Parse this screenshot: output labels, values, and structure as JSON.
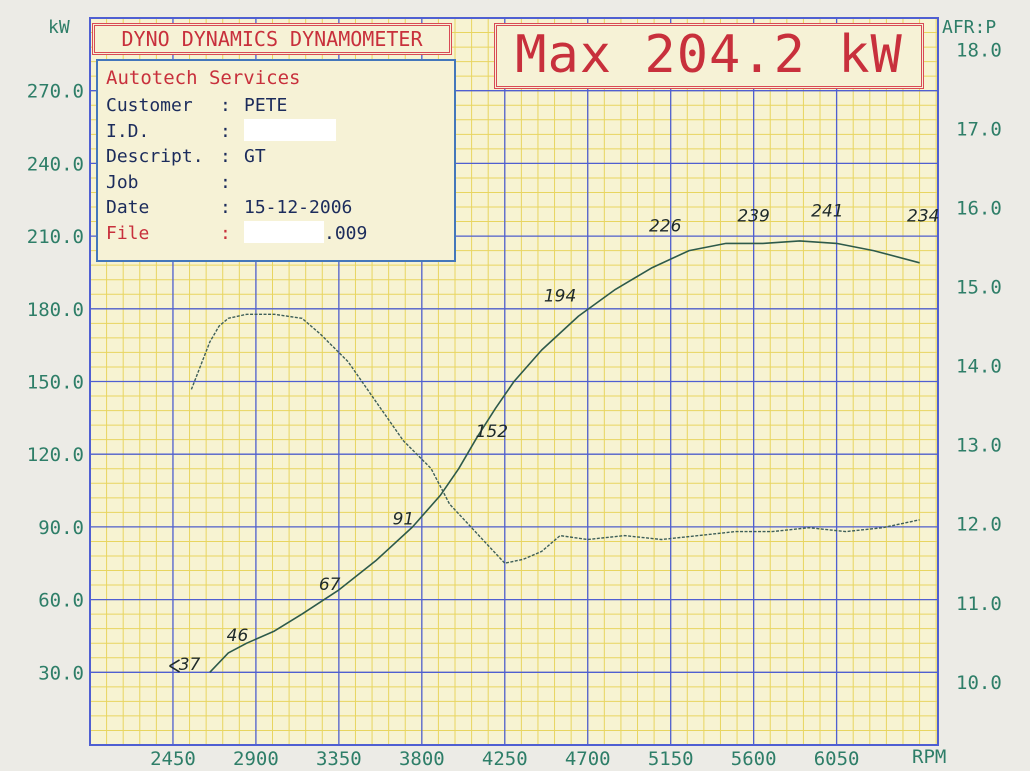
{
  "header": {
    "title": "DYNO DYNAMICS DYNAMOMETER",
    "max_label": "Max 204.2 kW"
  },
  "info_box": {
    "company": "Autotech Services",
    "rows": [
      {
        "label": "Customer",
        "sep": ":",
        "value": "PETE"
      },
      {
        "label": "I.D.",
        "sep": ":",
        "value": ""
      },
      {
        "label": "Descript.",
        "sep": ":",
        "value": "GT"
      },
      {
        "label": "Job",
        "sep": ":",
        "value": ""
      },
      {
        "label": "Date",
        "sep": ":",
        "value": "15-12-2006"
      }
    ],
    "file": {
      "label": "File",
      "sep": ":",
      "value": ".009"
    }
  },
  "colors": {
    "grid_major": "#4f5fd2",
    "grid_minor": "#e8d560",
    "plot_bg": "#f7f3d2",
    "axis_text": "#2e7e68",
    "title_red": "#c8303c",
    "power_line": "#2d5a4a",
    "afr_line": "#3e5f58"
  },
  "chart_data": {
    "type": "line",
    "x_axis": {
      "label": "RPM",
      "ticks": [
        2450,
        2900,
        3350,
        3800,
        4250,
        4700,
        5150,
        5600,
        6050
      ],
      "tick_labels": [
        "2450",
        "2900",
        "3350",
        "3800",
        "4250",
        "4700",
        "5150",
        "5600",
        "6050"
      ],
      "range": [
        2000,
        6600
      ]
    },
    "y_left": {
      "label": "kW",
      "ticks": [
        30,
        60,
        90,
        120,
        150,
        180,
        210,
        240,
        270
      ],
      "tick_labels": [
        "30.0",
        "60.0",
        "90.0",
        "120.0",
        "150.0",
        "180.0",
        "210.0",
        "240.0",
        "270.0"
      ],
      "range": [
        0,
        300
      ]
    },
    "y_right": {
      "label": "AFR:P",
      "ticks": [
        10,
        11,
        12,
        13,
        14,
        15,
        16,
        17,
        18
      ],
      "tick_labels": [
        "10.0",
        "11.0",
        "12.0",
        "13.0",
        "14.0",
        "15.0",
        "16.0",
        "17.0",
        "18.0"
      ],
      "range": [
        9.2,
        18.4
      ]
    },
    "grid": true,
    "series": [
      {
        "axis": "left",
        "x": [
          2650,
          2750,
          2850,
          3000,
          3150,
          3350,
          3550,
          3750,
          3900,
          4000,
          4100,
          4200,
          4300,
          4450,
          4650,
          4850,
          5050,
          5250,
          5450,
          5650,
          5850,
          6050,
          6250,
          6500
        ],
        "y": [
          30,
          38,
          42,
          47,
          54,
          64,
          76,
          90,
          103,
          114,
          127,
          139,
          150,
          163,
          177,
          188,
          197,
          204,
          207,
          207,
          208,
          207,
          204,
          199
        ]
      },
      {
        "axis": "right",
        "x": [
          2550,
          2600,
          2650,
          2700,
          2750,
          2850,
          3000,
          3150,
          3250,
          3400,
          3550,
          3700,
          3850,
          3950,
          4050,
          4150,
          4250,
          4350,
          4450,
          4550,
          4700,
          4900,
          5100,
          5300,
          5500,
          5700,
          5900,
          6100,
          6300,
          6500
        ],
        "y": [
          13.7,
          14.0,
          14.3,
          14.5,
          14.6,
          14.65,
          14.65,
          14.6,
          14.4,
          14.05,
          13.55,
          13.05,
          12.7,
          12.25,
          12.0,
          11.75,
          11.5,
          11.55,
          11.65,
          11.85,
          11.8,
          11.85,
          11.8,
          11.85,
          11.9,
          11.9,
          11.95,
          11.9,
          11.95,
          12.05
        ]
      }
    ],
    "annotations": [
      {
        "text": "37",
        "x": 2540,
        "y": 31
      },
      {
        "text": "46",
        "x": 2800,
        "y": 43
      },
      {
        "text": "67",
        "x": 3300,
        "y": 64
      },
      {
        "text": "91",
        "x": 3700,
        "y": 91
      },
      {
        "text": "152",
        "x": 4180,
        "y": 127
      },
      {
        "text": "194",
        "x": 4550,
        "y": 183
      },
      {
        "text": "226",
        "x": 5120,
        "y": 212
      },
      {
        "text": "239",
        "x": 5600,
        "y": 216
      },
      {
        "text": "241",
        "x": 6000,
        "y": 218
      },
      {
        "text": "234",
        "x": 6520,
        "y": 216
      }
    ]
  }
}
